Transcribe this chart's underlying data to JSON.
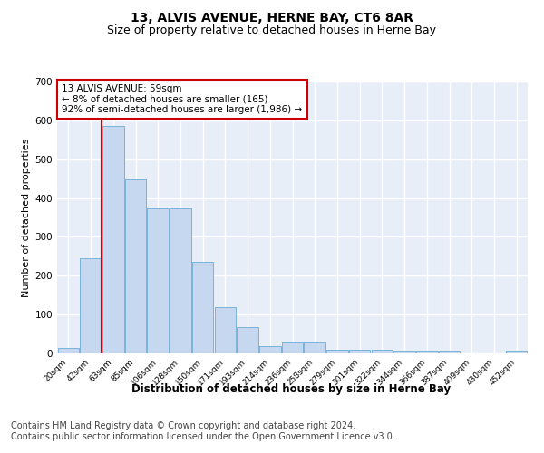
{
  "title1": "13, ALVIS AVENUE, HERNE BAY, CT6 8AR",
  "title2": "Size of property relative to detached houses in Herne Bay",
  "xlabel": "Distribution of detached houses by size in Herne Bay",
  "ylabel": "Number of detached properties",
  "categories": [
    "20sqm",
    "42sqm",
    "63sqm",
    "85sqm",
    "106sqm",
    "128sqm",
    "150sqm",
    "171sqm",
    "193sqm",
    "214sqm",
    "236sqm",
    "258sqm",
    "279sqm",
    "301sqm",
    "322sqm",
    "344sqm",
    "366sqm",
    "387sqm",
    "409sqm",
    "430sqm",
    "452sqm"
  ],
  "values": [
    15,
    245,
    585,
    447,
    373,
    373,
    235,
    118,
    67,
    18,
    27,
    27,
    10,
    10,
    10,
    7,
    7,
    7,
    0,
    0,
    7
  ],
  "bar_color": "#c5d8f0",
  "bar_edge_color": "#6aaad4",
  "vline_color": "#cc0000",
  "annotation_text": "13 ALVIS AVENUE: 59sqm\n← 8% of detached houses are smaller (165)\n92% of semi-detached houses are larger (1,986) →",
  "annotation_box_color": "#ffffff",
  "annotation_box_edge_color": "#cc0000",
  "ylim": [
    0,
    700
  ],
  "yticks": [
    0,
    100,
    200,
    300,
    400,
    500,
    600,
    700
  ],
  "background_color": "#e8eef8",
  "footer_text": "Contains HM Land Registry data © Crown copyright and database right 2024.\nContains public sector information licensed under the Open Government Licence v3.0.",
  "title1_fontsize": 10,
  "title2_fontsize": 9,
  "xlabel_fontsize": 8.5,
  "ylabel_fontsize": 8,
  "footer_fontsize": 7,
  "vline_xindex": 2
}
